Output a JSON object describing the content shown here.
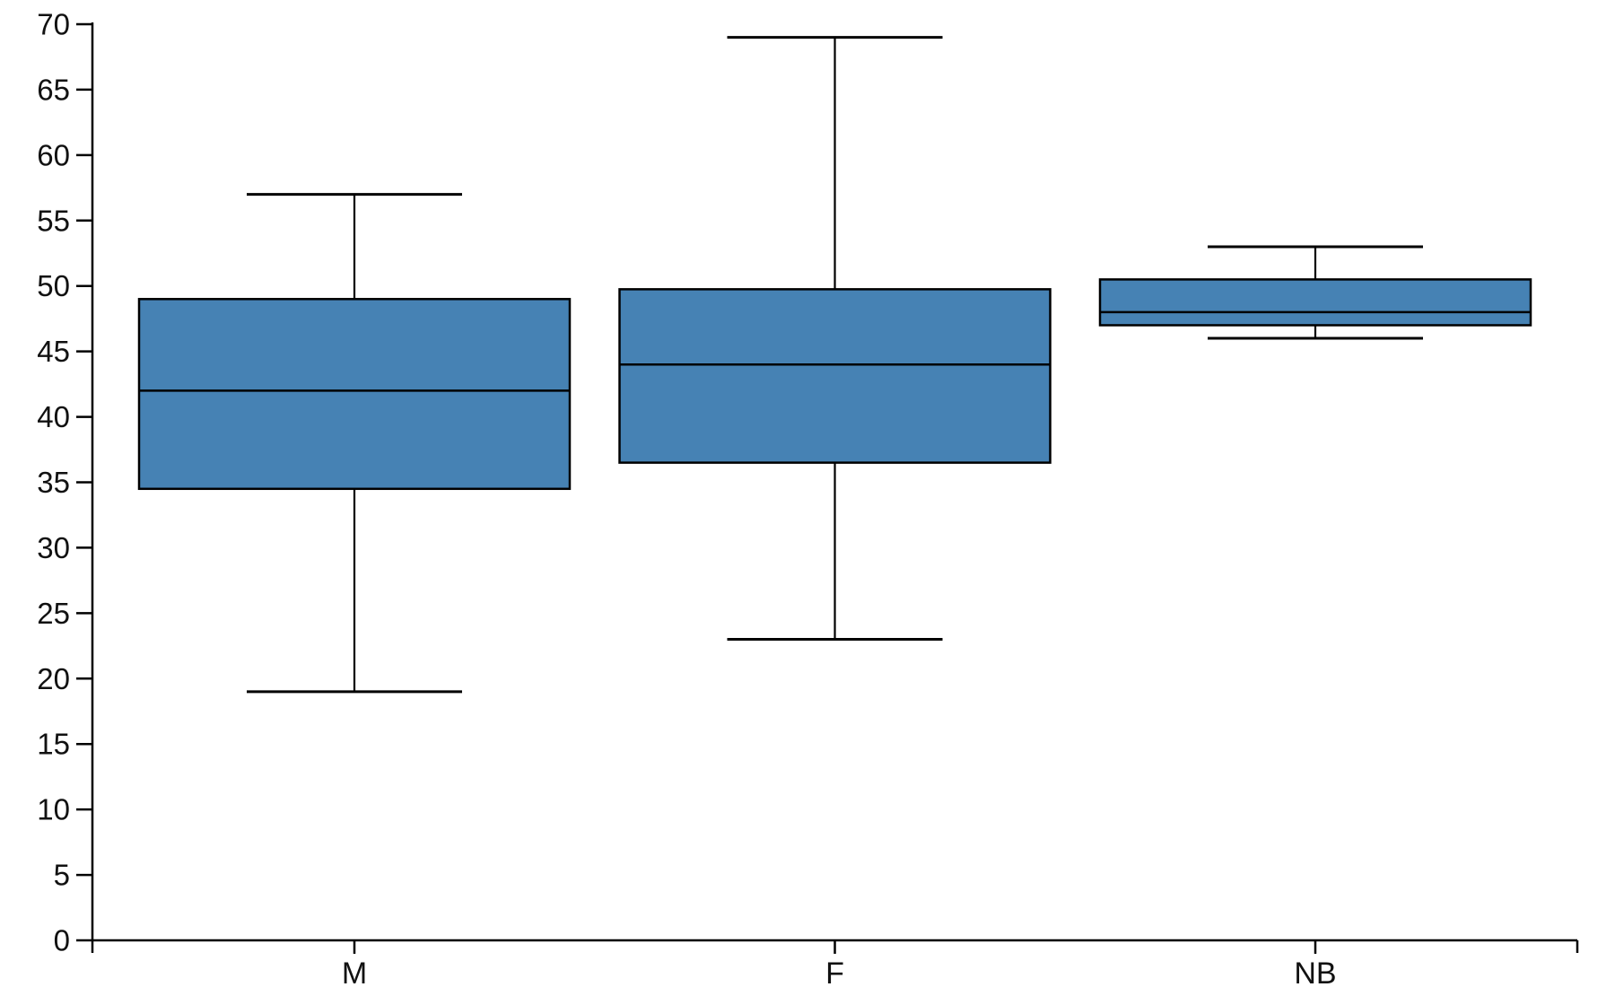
{
  "chart_data": {
    "type": "box",
    "title": "",
    "xlabel": "",
    "ylabel": "",
    "categories": [
      "M",
      "F",
      "NB"
    ],
    "series": [
      {
        "name": "M",
        "min": 19,
        "q1": 34.5,
        "median": 42,
        "q3": 49,
        "max": 57
      },
      {
        "name": "F",
        "min": 23,
        "q1": 36.5,
        "median": 44,
        "q3": 49.75,
        "max": 69
      },
      {
        "name": "NB",
        "min": 46,
        "q1": 47,
        "median": 48,
        "q3": 50.5,
        "max": 53
      }
    ],
    "ylim": [
      0,
      70
    ],
    "y_ticks": [
      0,
      5,
      10,
      15,
      20,
      25,
      30,
      35,
      40,
      45,
      50,
      55,
      60,
      65,
      70
    ],
    "grid": false,
    "legend": false,
    "orientation": "vertical",
    "colors": {
      "box_fill": "#4682B4",
      "stroke": "#000000",
      "text": "#111111",
      "background": "#FFFFFF"
    }
  }
}
